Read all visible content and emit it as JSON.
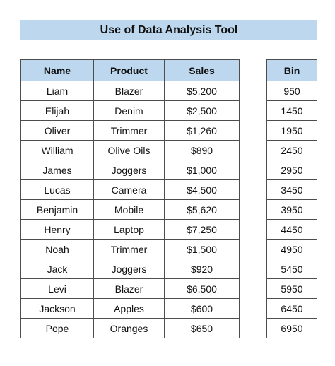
{
  "title": "Use of Data Analysis Tool",
  "colors": {
    "header_fill": "#bdd7ee",
    "border": "#4d4d4d"
  },
  "main_table": {
    "headers": [
      "Name",
      "Product",
      "Sales"
    ],
    "rows": [
      [
        "Liam",
        "Blazer",
        "$5,200"
      ],
      [
        "Elijah",
        "Denim",
        "$2,500"
      ],
      [
        "Oliver",
        "Trimmer",
        "$1,260"
      ],
      [
        "William",
        "Olive Oils",
        "$890"
      ],
      [
        "James",
        "Joggers",
        "$1,000"
      ],
      [
        "Lucas",
        "Camera",
        "$4,500"
      ],
      [
        "Benjamin",
        "Mobile",
        "$5,620"
      ],
      [
        "Henry",
        "Laptop",
        "$7,250"
      ],
      [
        "Noah",
        "Trimmer",
        "$1,500"
      ],
      [
        "Jack",
        "Joggers",
        "$920"
      ],
      [
        "Levi",
        "Blazer",
        "$6,500"
      ],
      [
        "Jackson",
        "Apples",
        "$600"
      ],
      [
        "Pope",
        "Oranges",
        "$650"
      ]
    ]
  },
  "bin_table": {
    "header": "Bin",
    "values": [
      "950",
      "1450",
      "1950",
      "2450",
      "2950",
      "3450",
      "3950",
      "4450",
      "4950",
      "5450",
      "5950",
      "6450",
      "6950"
    ]
  }
}
